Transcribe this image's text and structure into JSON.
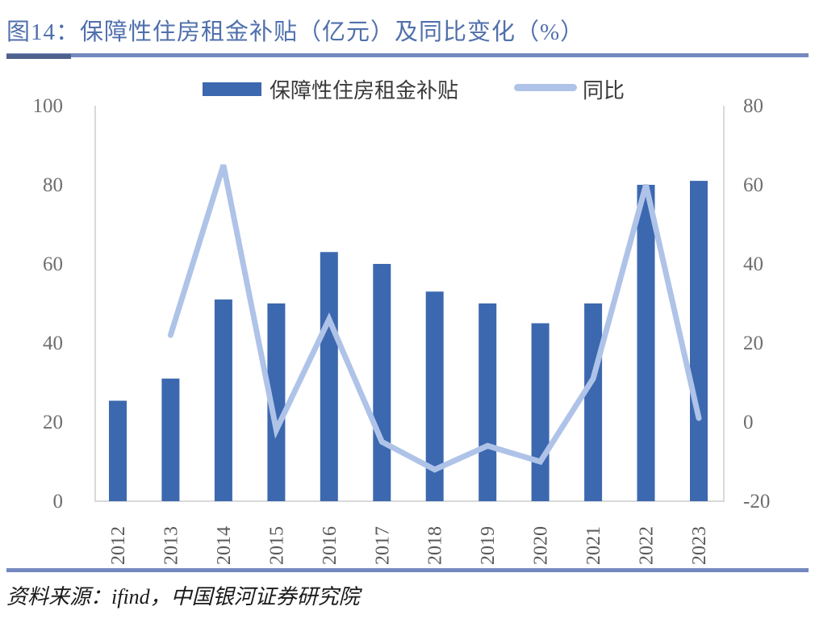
{
  "title": "图14：保障性住房租金补贴（亿元）及同比变化（%）",
  "source": "资料来源：ifind，中国银河证券研究院",
  "legend": {
    "bar_label": "保障性住房租金补贴",
    "line_label": "同比"
  },
  "colors": {
    "bar": "#3C68AF",
    "line": "#AFC3E8",
    "title_text": "#5070AC",
    "rule": "#7389BE",
    "rule_tip": "#4F608C",
    "axis_line": "#D9D9D9",
    "tick_text": "#6E6E6E",
    "year_text": "#595959",
    "legend_text": "#3A3A3A",
    "source_text": "#1A1A1A"
  },
  "chart_data": {
    "type": "bar",
    "subtype": "bar+line combo, dual axis",
    "title": "保障性住房租金补贴（亿元）及同比变化（%）",
    "categories": [
      "2012",
      "2013",
      "2014",
      "2015",
      "2016",
      "2017",
      "2018",
      "2019",
      "2020",
      "2021",
      "2022",
      "2023"
    ],
    "series": [
      {
        "name": "保障性住房租金补贴",
        "type": "bar",
        "axis": "left",
        "unit": "亿元",
        "values": [
          25.4,
          31,
          51,
          50,
          63,
          60,
          53,
          50,
          45,
          50,
          80,
          81
        ]
      },
      {
        "name": "同比",
        "type": "line",
        "axis": "right",
        "unit": "%",
        "values": [
          null,
          22,
          65,
          -2,
          26,
          -5,
          -12,
          -6,
          -10,
          11,
          60,
          1
        ]
      }
    ],
    "left_axis": {
      "ticks": [
        0,
        20,
        40,
        60,
        80,
        100
      ],
      "range": [
        0,
        100
      ]
    },
    "right_axis": {
      "ticks": [
        -20,
        0,
        20,
        40,
        60,
        80
      ],
      "range": [
        -20,
        80
      ]
    },
    "grid": false,
    "legend_position": "top",
    "x_label_rotation": -90
  }
}
